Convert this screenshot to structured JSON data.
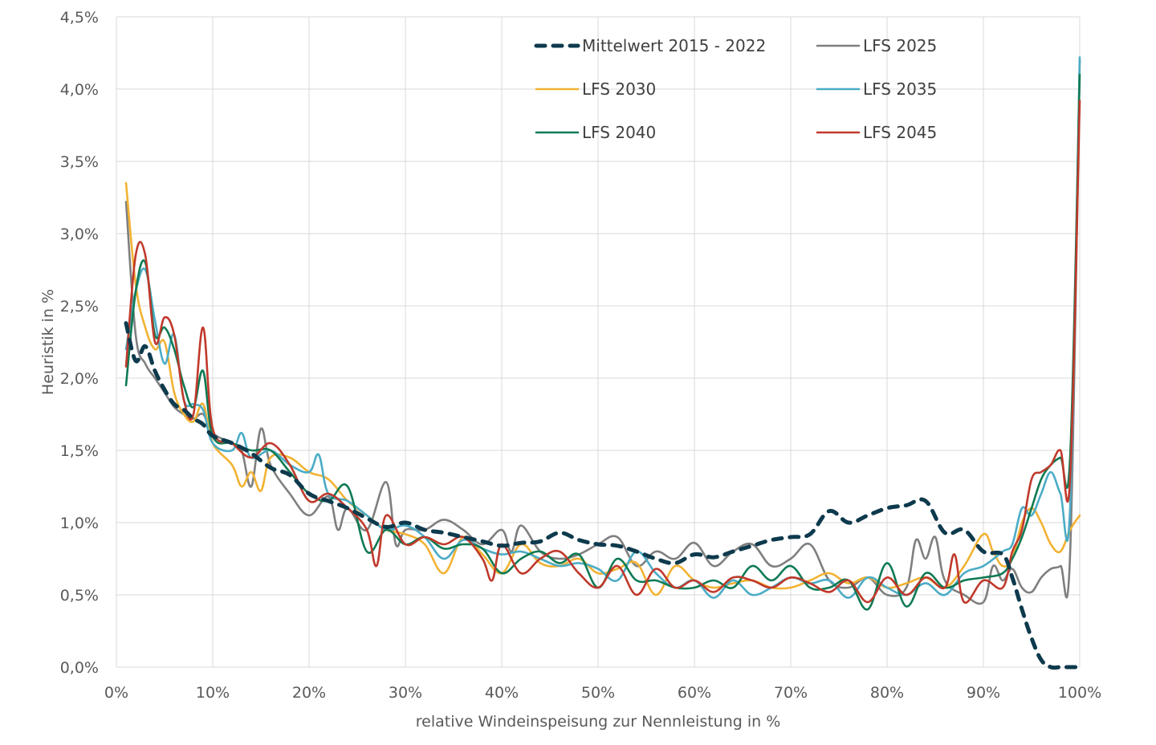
{
  "chart_data": {
    "type": "line",
    "title": "",
    "xlabel": "relative Windeinspeisung zur Nennleistung in %",
    "ylabel": "Heuristik in %",
    "xlim": [
      0,
      100
    ],
    "ylim": [
      0,
      4.5
    ],
    "grid": true,
    "legend_position": "top-right",
    "x_ticks": [
      0,
      10,
      20,
      30,
      40,
      50,
      60,
      70,
      80,
      90,
      100
    ],
    "x_tick_labels": [
      "0%",
      "10%",
      "20%",
      "30%",
      "40%",
      "50%",
      "60%",
      "70%",
      "80%",
      "90%",
      "100%"
    ],
    "y_ticks": [
      0,
      0.5,
      1.0,
      1.5,
      2.0,
      2.5,
      3.0,
      3.5,
      4.0,
      4.5
    ],
    "y_tick_labels": [
      "0,0%",
      "0,5%",
      "1,0%",
      "1,5%",
      "2,0%",
      "2,5%",
      "3,0%",
      "3,5%",
      "4,0%",
      "4,5%"
    ],
    "series": [
      {
        "name": "Mittelwert 2015 - 2022",
        "color": "#0e3a4d",
        "dashed": true,
        "x": [
          1,
          2,
          3,
          4,
          5,
          6,
          7,
          8,
          9,
          10,
          12,
          14,
          16,
          18,
          20,
          22,
          24,
          26,
          28,
          30,
          32,
          34,
          36,
          38,
          40,
          42,
          44,
          46,
          48,
          50,
          52,
          54,
          56,
          58,
          60,
          62,
          64,
          66,
          68,
          70,
          72,
          74,
          76,
          78,
          80,
          82,
          84,
          86,
          88,
          90,
          92,
          93,
          94,
          95,
          96,
          97,
          98,
          99,
          100
        ],
        "y": [
          2.38,
          2.12,
          2.22,
          2.05,
          1.92,
          1.82,
          1.78,
          1.72,
          1.68,
          1.6,
          1.55,
          1.48,
          1.38,
          1.33,
          1.2,
          1.15,
          1.1,
          1.03,
          0.97,
          1.0,
          0.95,
          0.93,
          0.9,
          0.87,
          0.84,
          0.86,
          0.87,
          0.93,
          0.88,
          0.85,
          0.84,
          0.8,
          0.75,
          0.72,
          0.78,
          0.76,
          0.8,
          0.84,
          0.88,
          0.9,
          0.92,
          1.08,
          1.0,
          1.05,
          1.1,
          1.12,
          1.15,
          0.93,
          0.95,
          0.8,
          0.78,
          0.62,
          0.4,
          0.2,
          0.05,
          0.0,
          0.0,
          0.0,
          0.0
        ]
      },
      {
        "name": "LFS 2025",
        "color": "#7f7f7f",
        "dashed": false,
        "x": [
          1,
          2,
          3,
          4,
          5,
          6,
          7,
          8,
          9,
          10,
          12,
          13,
          14,
          15,
          16,
          18,
          20,
          22,
          23,
          24,
          26,
          28,
          29,
          30,
          32,
          34,
          36,
          38,
          40,
          41,
          42,
          44,
          46,
          48,
          50,
          52,
          54,
          56,
          58,
          60,
          62,
          64,
          66,
          68,
          70,
          72,
          74,
          76,
          78,
          80,
          82,
          83,
          84,
          85,
          86,
          88,
          90,
          91,
          92,
          93,
          94,
          95,
          96,
          97,
          98,
          99,
          100
        ],
        "y": [
          3.22,
          2.3,
          2.1,
          2.0,
          1.9,
          1.8,
          1.75,
          1.72,
          1.75,
          1.62,
          1.55,
          1.5,
          1.25,
          1.65,
          1.4,
          1.2,
          1.05,
          1.18,
          0.95,
          1.1,
          0.95,
          1.28,
          0.85,
          0.95,
          0.95,
          1.02,
          0.95,
          0.85,
          0.95,
          0.8,
          0.98,
          0.8,
          0.75,
          0.78,
          0.85,
          0.9,
          0.7,
          0.8,
          0.75,
          0.86,
          0.7,
          0.8,
          0.85,
          0.7,
          0.75,
          0.85,
          0.6,
          0.55,
          0.62,
          0.5,
          0.55,
          0.88,
          0.75,
          0.9,
          0.6,
          0.5,
          0.45,
          0.7,
          0.6,
          0.68,
          0.55,
          0.52,
          0.62,
          0.68,
          0.7,
          0.78,
          4.2
        ]
      },
      {
        "name": "LFS 2030",
        "color": "#f2b233",
        "dashed": false,
        "x": [
          1,
          2,
          3,
          4,
          5,
          6,
          7,
          8,
          9,
          10,
          12,
          13,
          14,
          15,
          16,
          18,
          20,
          22,
          24,
          26,
          28,
          30,
          32,
          34,
          36,
          38,
          40,
          42,
          44,
          46,
          48,
          50,
          52,
          54,
          56,
          58,
          60,
          62,
          64,
          66,
          68,
          70,
          72,
          74,
          76,
          78,
          80,
          82,
          84,
          86,
          88,
          90,
          91,
          92,
          93,
          94,
          95,
          96,
          97,
          98,
          99,
          100
        ],
        "y": [
          3.35,
          2.65,
          2.35,
          2.2,
          2.25,
          1.9,
          1.75,
          1.7,
          1.82,
          1.55,
          1.4,
          1.25,
          1.35,
          1.22,
          1.45,
          1.45,
          1.35,
          1.3,
          1.15,
          1.05,
          0.95,
          0.92,
          0.85,
          0.65,
          0.9,
          0.78,
          0.65,
          0.85,
          0.72,
          0.7,
          0.75,
          0.65,
          0.68,
          0.72,
          0.5,
          0.7,
          0.6,
          0.55,
          0.58,
          0.6,
          0.55,
          0.55,
          0.6,
          0.65,
          0.58,
          0.62,
          0.55,
          0.58,
          0.62,
          0.55,
          0.7,
          0.92,
          0.8,
          0.7,
          0.75,
          1.0,
          1.1,
          1.0,
          0.85,
          0.8,
          0.95,
          1.05
        ]
      },
      {
        "name": "LFS 2035",
        "color": "#4bacc6",
        "dashed": false,
        "x": [
          1,
          2,
          3,
          4,
          5,
          6,
          7,
          8,
          9,
          10,
          12,
          13,
          14,
          16,
          18,
          20,
          21,
          22,
          24,
          26,
          28,
          30,
          32,
          34,
          36,
          38,
          40,
          42,
          44,
          46,
          48,
          50,
          52,
          54,
          56,
          58,
          60,
          62,
          64,
          66,
          68,
          70,
          72,
          74,
          76,
          78,
          80,
          82,
          84,
          86,
          88,
          90,
          92,
          93,
          94,
          95,
          96,
          97,
          98,
          99,
          100
        ],
        "y": [
          2.2,
          2.6,
          2.75,
          2.4,
          2.1,
          2.3,
          1.85,
          1.82,
          1.78,
          1.55,
          1.5,
          1.62,
          1.45,
          1.5,
          1.4,
          1.35,
          1.47,
          1.2,
          1.15,
          1.05,
          0.95,
          0.98,
          0.9,
          0.75,
          0.88,
          0.82,
          0.78,
          0.8,
          0.75,
          0.7,
          0.72,
          0.68,
          0.6,
          0.8,
          0.65,
          0.55,
          0.6,
          0.48,
          0.6,
          0.5,
          0.55,
          0.62,
          0.58,
          0.6,
          0.48,
          0.62,
          0.55,
          0.5,
          0.58,
          0.5,
          0.65,
          0.7,
          0.8,
          0.85,
          1.1,
          1.05,
          1.2,
          1.35,
          1.2,
          1.1,
          4.22
        ]
      },
      {
        "name": "LFS 2040",
        "color": "#0e7a53",
        "dashed": false,
        "x": [
          1,
          2,
          3,
          4,
          5,
          6,
          7,
          8,
          9,
          10,
          12,
          14,
          16,
          18,
          20,
          22,
          24,
          26,
          28,
          30,
          32,
          34,
          36,
          38,
          40,
          42,
          44,
          46,
          48,
          50,
          52,
          54,
          56,
          58,
          60,
          62,
          64,
          66,
          68,
          70,
          72,
          74,
          76,
          78,
          80,
          82,
          84,
          86,
          88,
          90,
          92,
          93,
          94,
          95,
          96,
          97,
          98,
          99,
          100
        ],
        "y": [
          1.95,
          2.6,
          2.8,
          2.3,
          2.35,
          2.2,
          1.95,
          1.8,
          2.05,
          1.6,
          1.55,
          1.5,
          1.5,
          1.35,
          1.2,
          1.15,
          1.25,
          0.8,
          0.95,
          0.85,
          0.9,
          0.82,
          0.85,
          0.82,
          0.65,
          0.75,
          0.8,
          0.72,
          0.78,
          0.55,
          0.75,
          0.6,
          0.6,
          0.55,
          0.55,
          0.6,
          0.55,
          0.7,
          0.6,
          0.7,
          0.55,
          0.55,
          0.6,
          0.4,
          0.72,
          0.42,
          0.65,
          0.55,
          0.6,
          0.62,
          0.65,
          0.75,
          0.9,
          1.1,
          1.3,
          1.4,
          1.45,
          1.45,
          4.1
        ]
      },
      {
        "name": "LFS 2045",
        "color": "#c0392b",
        "dashed": false,
        "x": [
          1,
          2,
          3,
          4,
          5,
          6,
          7,
          8,
          9,
          10,
          12,
          14,
          16,
          18,
          20,
          22,
          24,
          26,
          27,
          28,
          30,
          32,
          34,
          36,
          38,
          39,
          40,
          42,
          44,
          46,
          48,
          50,
          52,
          54,
          56,
          58,
          60,
          62,
          64,
          66,
          68,
          70,
          72,
          74,
          76,
          78,
          80,
          82,
          84,
          86,
          87,
          88,
          90,
          92,
          93,
          94,
          95,
          96,
          97,
          98,
          99,
          100
        ],
        "y": [
          2.08,
          2.85,
          2.85,
          2.25,
          2.42,
          2.3,
          1.85,
          1.75,
          2.35,
          1.65,
          1.55,
          1.45,
          1.55,
          1.4,
          1.15,
          1.2,
          1.1,
          0.95,
          0.7,
          1.05,
          0.85,
          0.9,
          0.85,
          0.9,
          0.75,
          0.6,
          0.85,
          0.65,
          0.75,
          0.8,
          0.65,
          0.55,
          0.7,
          0.5,
          0.68,
          0.55,
          0.6,
          0.52,
          0.62,
          0.6,
          0.55,
          0.62,
          0.58,
          0.52,
          0.6,
          0.45,
          0.62,
          0.5,
          0.62,
          0.55,
          0.78,
          0.45,
          0.6,
          0.55,
          0.8,
          0.95,
          1.3,
          1.35,
          1.4,
          1.5,
          1.3,
          3.92
        ]
      }
    ]
  }
}
